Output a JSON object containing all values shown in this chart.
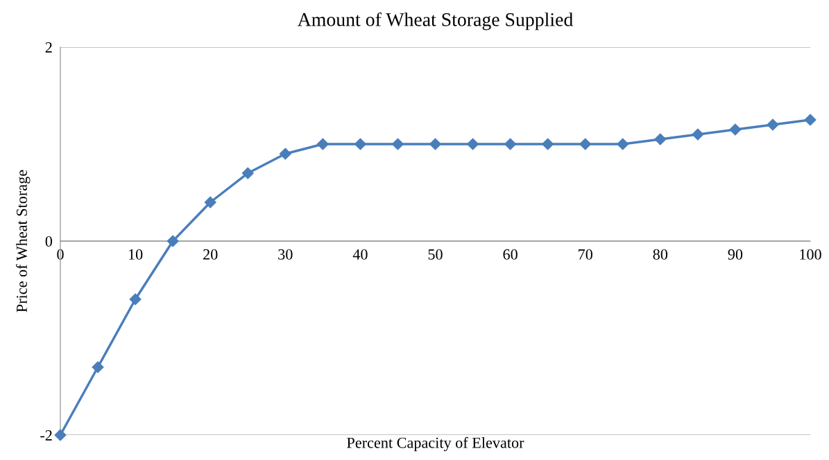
{
  "chart_data": {
    "type": "line",
    "title": "Amount of Wheat Storage Supplied",
    "xlabel": "Percent Capacity of Elevator",
    "ylabel": "Price of Wheat Storage",
    "x": [
      0,
      5,
      10,
      15,
      20,
      25,
      30,
      35,
      40,
      45,
      50,
      55,
      60,
      65,
      70,
      75,
      80,
      85,
      90,
      95,
      100
    ],
    "series": [
      {
        "color": "#4a7ebb",
        "values": [
          -2,
          -1.3,
          -0.6,
          0,
          0.4,
          0.7,
          0.9,
          1,
          1,
          1,
          1,
          1,
          1,
          1,
          1,
          1,
          1.05,
          1.1,
          1.15,
          1.2,
          1.25
        ]
      }
    ],
    "xlim": [
      0,
      100
    ],
    "xticks": [
      0,
      10,
      20,
      30,
      40,
      50,
      60,
      70,
      80,
      90,
      100
    ],
    "ylim": [
      -2,
      2
    ],
    "yticks": [
      -2,
      0,
      2
    ],
    "grid": "y",
    "marker": "diamond",
    "line_style": "solid"
  }
}
